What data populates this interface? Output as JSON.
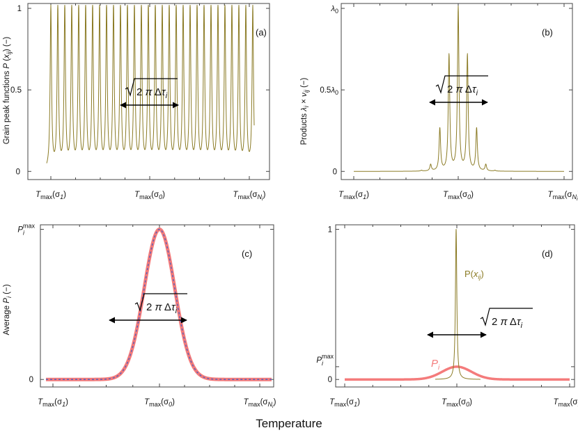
{
  "figure": {
    "xlabel": "Temperature"
  },
  "colors": {
    "olive": "#8b7b25",
    "pink": "#f47b7b",
    "blue": "#4a5fbf",
    "arrow": "#000000"
  },
  "x_ticks": [
    "Tmax(σ1)",
    "Tmax(σ0)",
    "Tmax(σNi)"
  ],
  "chart_data": [
    {
      "id": "a",
      "panel_label": "(a)",
      "type": "line",
      "ylabel": "Grain peak functions  P(xij) (−)",
      "y_tick_labels": [
        "0",
        "0.5",
        "1"
      ],
      "ylim": [
        -0.05,
        1.03
      ],
      "annotation": "√(2π Δτi)",
      "series": [
        {
          "values": [
            1,
            1,
            1,
            1,
            1,
            1,
            1,
            1,
            1,
            1,
            1,
            1,
            1,
            1,
            1,
            1,
            1,
            1,
            1,
            1,
            1,
            1,
            1,
            1,
            1,
            1,
            1,
            1,
            1,
            1
          ]
        }
      ]
    },
    {
      "id": "b",
      "panel_label": "(b)",
      "type": "line",
      "ylabel": "Products  λi × νij (−)",
      "y_tick_labels": [
        "0",
        "0.5λ0",
        "λ0"
      ],
      "ylim": [
        -0.05,
        1.03
      ],
      "annotation": "√(2π Δτi)",
      "series": [
        {
          "values": [
            0.005,
            0.04,
            0.26,
            0.71,
            1.0,
            0.71,
            0.26,
            0.04,
            0.005
          ]
        }
      ]
    },
    {
      "id": "c",
      "panel_label": "(c)",
      "type": "line",
      "ylabel": "Average  Pi (−)",
      "y_tick_labels": [
        "0",
        "Pimax"
      ],
      "ylim": [
        -0.05,
        1.03
      ],
      "annotation": "√(2π Δτi)",
      "series": [
        {
          "values": [
            1.0
          ]
        }
      ]
    },
    {
      "id": "d",
      "panel_label": "(d)",
      "type": "line",
      "y_tick_labels": [
        "0",
        "Pimax",
        "1"
      ],
      "ylim": [
        -0.05,
        1.03
      ],
      "annotation": "√(2π Δτi)",
      "series": [
        {
          "name": "P(xij)",
          "values": [
            1.0
          ]
        },
        {
          "name": "Pi",
          "values": [
            0.085
          ]
        }
      ]
    }
  ]
}
